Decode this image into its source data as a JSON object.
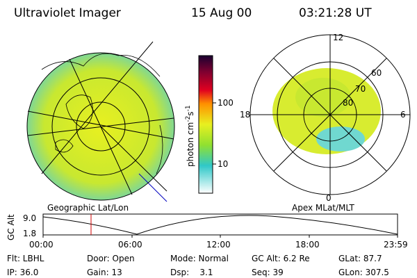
{
  "header": {
    "title": "Ultraviolet Imager",
    "date": "15 Aug 00",
    "time": "03:21:28 UT"
  },
  "left_panel": {
    "label": "Geographic Lat/Lon"
  },
  "right_panel": {
    "label": "Apex MLat/MLT",
    "mlt_labels": [
      "12",
      "18",
      "6",
      "0"
    ],
    "mlat_labels": [
      "60",
      "70",
      "80"
    ]
  },
  "colorbar": {
    "label": [
      "photon cm",
      "-2",
      "s",
      "-1"
    ],
    "ticks": [
      "100",
      "10"
    ]
  },
  "altitude_plot": {
    "ylabel": "GC Alt",
    "yticks": [
      "9.0",
      "1.8"
    ],
    "xticks": [
      "00:00",
      "06:00",
      "12:00",
      "18:00",
      "23:59"
    ]
  },
  "footer": {
    "rows": [
      [
        "Flt: LBHL",
        "Door: Open",
        "Mode: Normal",
        "GC Alt: 6.2 Re",
        "GLat: 87.7"
      ],
      [
        "IP: 36.0",
        "Gain: 13",
        "Dsp:    3.1",
        "Seq: 39",
        "GLon: 307.5"
      ]
    ]
  }
}
